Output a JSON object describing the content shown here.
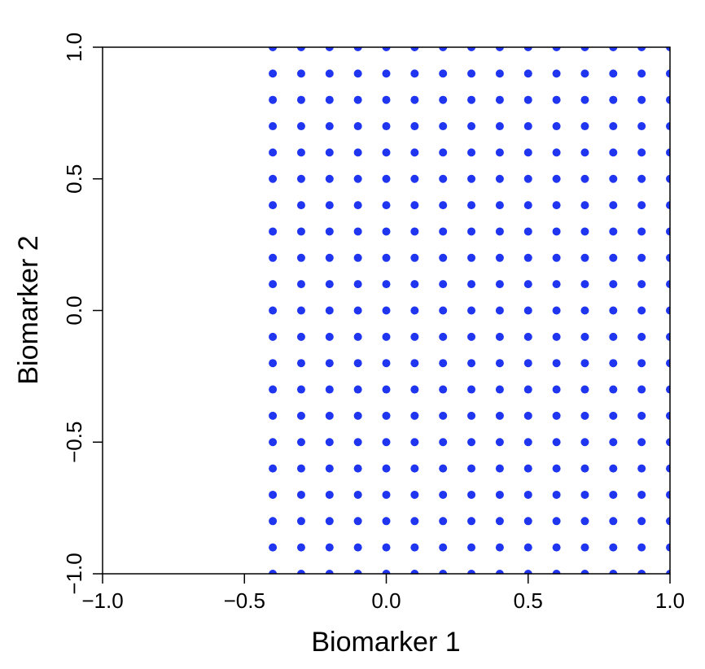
{
  "chart_data": {
    "type": "scatter",
    "xlabel": "Biomarker 1",
    "ylabel": "Biomarker 2",
    "xlim": [
      -1,
      1
    ],
    "ylim": [
      -1,
      1
    ],
    "xticks": [
      {
        "value": -1,
        "label": "−1.0"
      },
      {
        "value": -0.5,
        "label": "−0.5"
      },
      {
        "value": 0,
        "label": "0.0"
      },
      0.5,
      {
        "value": 1,
        "label": "1.0"
      }
    ],
    "yticks": [
      {
        "value": -1,
        "label": "−1.0"
      },
      {
        "value": -0.5,
        "label": "−0.5"
      },
      {
        "value": 0,
        "label": "0.0"
      },
      0.5,
      {
        "value": 1,
        "label": "1.0"
      }
    ],
    "color": "#1f35f0",
    "x": [
      -0.4,
      -0.4,
      -0.4,
      -0.4,
      -0.4,
      -0.4,
      -0.4,
      -0.4,
      -0.4,
      -0.4,
      -0.4,
      -0.4,
      -0.4,
      -0.4,
      -0.4,
      -0.4,
      -0.4,
      -0.4,
      -0.4,
      -0.4,
      -0.4,
      -0.3,
      -0.3,
      -0.3,
      -0.3,
      -0.3,
      -0.3,
      -0.3,
      -0.3,
      -0.3,
      -0.3,
      -0.3,
      -0.3,
      -0.3,
      -0.3,
      -0.3,
      -0.3,
      -0.3,
      -0.3,
      -0.3,
      -0.3,
      -0.3,
      -0.2,
      -0.2,
      -0.2,
      -0.2,
      -0.2,
      -0.2,
      -0.2,
      -0.2,
      -0.2,
      -0.2,
      -0.2,
      -0.2,
      -0.2,
      -0.2,
      -0.2,
      -0.2,
      -0.2,
      -0.2,
      -0.2,
      -0.2,
      -0.2,
      -0.1,
      -0.1,
      -0.1,
      -0.1,
      -0.1,
      -0.1,
      -0.1,
      -0.1,
      -0.1,
      -0.1,
      -0.1,
      -0.1,
      -0.1,
      -0.1,
      -0.1,
      -0.1,
      -0.1,
      -0.1,
      -0.1,
      -0.1,
      -0.1,
      0,
      0,
      0,
      0,
      0,
      0,
      0,
      0,
      0,
      0,
      0,
      0,
      0,
      0,
      0,
      0,
      0,
      0,
      0,
      0,
      0,
      0.1,
      0.1,
      0.1,
      0.1,
      0.1,
      0.1,
      0.1,
      0.1,
      0.1,
      0.1,
      0.1,
      0.1,
      0.1,
      0.1,
      0.1,
      0.1,
      0.1,
      0.1,
      0.1,
      0.1,
      0.1,
      0.2,
      0.2,
      0.2,
      0.2,
      0.2,
      0.2,
      0.2,
      0.2,
      0.2,
      0.2,
      0.2,
      0.2,
      0.2,
      0.2,
      0.2,
      0.2,
      0.2,
      0.2,
      0.2,
      0.2,
      0.2,
      0.3,
      0.3,
      0.3,
      0.3,
      0.3,
      0.3,
      0.3,
      0.3,
      0.3,
      0.3,
      0.3,
      0.3,
      0.3,
      0.3,
      0.3,
      0.3,
      0.3,
      0.3,
      0.3,
      0.3,
      0.3,
      0.4,
      0.4,
      0.4,
      0.4,
      0.4,
      0.4,
      0.4,
      0.4,
      0.4,
      0.4,
      0.4,
      0.4,
      0.4,
      0.4,
      0.4,
      0.4,
      0.4,
      0.4,
      0.4,
      0.4,
      0.4,
      0.5,
      0.5,
      0.5,
      0.5,
      0.5,
      0.5,
      0.5,
      0.5,
      0.5,
      0.5,
      0.5,
      0.5,
      0.5,
      0.5,
      0.5,
      0.5,
      0.5,
      0.5,
      0.5,
      0.5,
      0.5,
      0.6,
      0.6,
      0.6,
      0.6,
      0.6,
      0.6,
      0.6,
      0.6,
      0.6,
      0.6,
      0.6,
      0.6,
      0.6,
      0.6,
      0.6,
      0.6,
      0.6,
      0.6,
      0.6,
      0.6,
      0.6,
      0.7,
      0.7,
      0.7,
      0.7,
      0.7,
      0.7,
      0.7,
      0.7,
      0.7,
      0.7,
      0.7,
      0.7,
      0.7,
      0.7,
      0.7,
      0.7,
      0.7,
      0.7,
      0.7,
      0.7,
      0.7,
      0.8,
      0.8,
      0.8,
      0.8,
      0.8,
      0.8,
      0.8,
      0.8,
      0.8,
      0.8,
      0.8,
      0.8,
      0.8,
      0.8,
      0.8,
      0.8,
      0.8,
      0.8,
      0.8,
      0.8,
      0.8,
      0.9,
      0.9,
      0.9,
      0.9,
      0.9,
      0.9,
      0.9,
      0.9,
      0.9,
      0.9,
      0.9,
      0.9,
      0.9,
      0.9,
      0.9,
      0.9,
      0.9,
      0.9,
      0.9,
      0.9,
      0.9,
      1,
      1,
      1,
      1,
      1,
      1,
      1,
      1,
      1,
      1,
      1,
      1,
      1,
      1,
      1,
      1,
      1,
      1,
      1,
      1,
      1
    ],
    "values": [
      -1,
      -0.9,
      -0.8,
      -0.7,
      -0.6,
      -0.5,
      -0.4,
      -0.3,
      -0.2,
      -0.1,
      0,
      0.1,
      0.2,
      0.3,
      0.4,
      0.5,
      0.6,
      0.7,
      0.8,
      0.9,
      1,
      -1,
      -0.9,
      -0.8,
      -0.7,
      -0.6,
      -0.5,
      -0.4,
      -0.3,
      -0.2,
      -0.1,
      0,
      0.1,
      0.2,
      0.3,
      0.4,
      0.5,
      0.6,
      0.7,
      0.8,
      0.9,
      1,
      -1,
      -0.9,
      -0.8,
      -0.7,
      -0.6,
      -0.5,
      -0.4,
      -0.3,
      -0.2,
      -0.1,
      0,
      0.1,
      0.2,
      0.3,
      0.4,
      0.5,
      0.6,
      0.7,
      0.8,
      0.9,
      1,
      -1,
      -0.9,
      -0.8,
      -0.7,
      -0.6,
      -0.5,
      -0.4,
      -0.3,
      -0.2,
      -0.1,
      0,
      0.1,
      0.2,
      0.3,
      0.4,
      0.5,
      0.6,
      0.7,
      0.8,
      0.9,
      1,
      -1,
      -0.9,
      -0.8,
      -0.7,
      -0.6,
      -0.5,
      -0.4,
      -0.3,
      -0.2,
      -0.1,
      0,
      0.1,
      0.2,
      0.3,
      0.4,
      0.5,
      0.6,
      0.7,
      0.8,
      0.9,
      1,
      -1,
      -0.9,
      -0.8,
      -0.7,
      -0.6,
      -0.5,
      -0.4,
      -0.3,
      -0.2,
      -0.1,
      0,
      0.1,
      0.2,
      0.3,
      0.4,
      0.5,
      0.6,
      0.7,
      0.8,
      0.9,
      1,
      -1,
      -0.9,
      -0.8,
      -0.7,
      -0.6,
      -0.5,
      -0.4,
      -0.3,
      -0.2,
      -0.1,
      0,
      0.1,
      0.2,
      0.3,
      0.4,
      0.5,
      0.6,
      0.7,
      0.8,
      0.9,
      1,
      -1,
      -0.9,
      -0.8,
      -0.7,
      -0.6,
      -0.5,
      -0.4,
      -0.3,
      -0.2,
      -0.1,
      0,
      0.1,
      0.2,
      0.3,
      0.4,
      0.5,
      0.6,
      0.7,
      0.8,
      0.9,
      1,
      -1,
      -0.9,
      -0.8,
      -0.7,
      -0.6,
      -0.5,
      -0.4,
      -0.3,
      -0.2,
      -0.1,
      0,
      0.1,
      0.2,
      0.3,
      0.4,
      0.5,
      0.6,
      0.7,
      0.8,
      0.9,
      1,
      -1,
      -0.9,
      -0.8,
      -0.7,
      -0.6,
      -0.5,
      -0.4,
      -0.3,
      -0.2,
      -0.1,
      0,
      0.1,
      0.2,
      0.3,
      0.4,
      0.5,
      0.6,
      0.7,
      0.8,
      0.9,
      1,
      -1,
      -0.9,
      -0.8,
      -0.7,
      -0.6,
      -0.5,
      -0.4,
      -0.3,
      -0.2,
      -0.1,
      0,
      0.1,
      0.2,
      0.3,
      0.4,
      0.5,
      0.6,
      0.7,
      0.8,
      0.9,
      1,
      -1,
      -0.9,
      -0.8,
      -0.7,
      -0.6,
      -0.5,
      -0.4,
      -0.3,
      -0.2,
      -0.1,
      0,
      0.1,
      0.2,
      0.3,
      0.4,
      0.5,
      0.6,
      0.7,
      0.8,
      0.9,
      1,
      -1,
      -0.9,
      -0.8,
      -0.7,
      -0.6,
      -0.5,
      -0.4,
      -0.3,
      -0.2,
      -0.1,
      0,
      0.1,
      0.2,
      0.3,
      0.4,
      0.5,
      0.6,
      0.7,
      0.8,
      0.9,
      1,
      -1,
      -0.9,
      -0.8,
      -0.7,
      -0.6,
      -0.5,
      -0.4,
      -0.3,
      -0.2,
      -0.1,
      0,
      0.1,
      0.2,
      0.3,
      0.4,
      0.5,
      0.6,
      0.7,
      0.8,
      0.9,
      1,
      -1,
      -0.9,
      -0.8,
      -0.7,
      -0.6,
      -0.5,
      -0.4,
      -0.3,
      -0.2,
      -0.1,
      0,
      0.1,
      0.2,
      0.3,
      0.4,
      0.5,
      0.6,
      0.7,
      0.8,
      0.9,
      1
    ]
  }
}
